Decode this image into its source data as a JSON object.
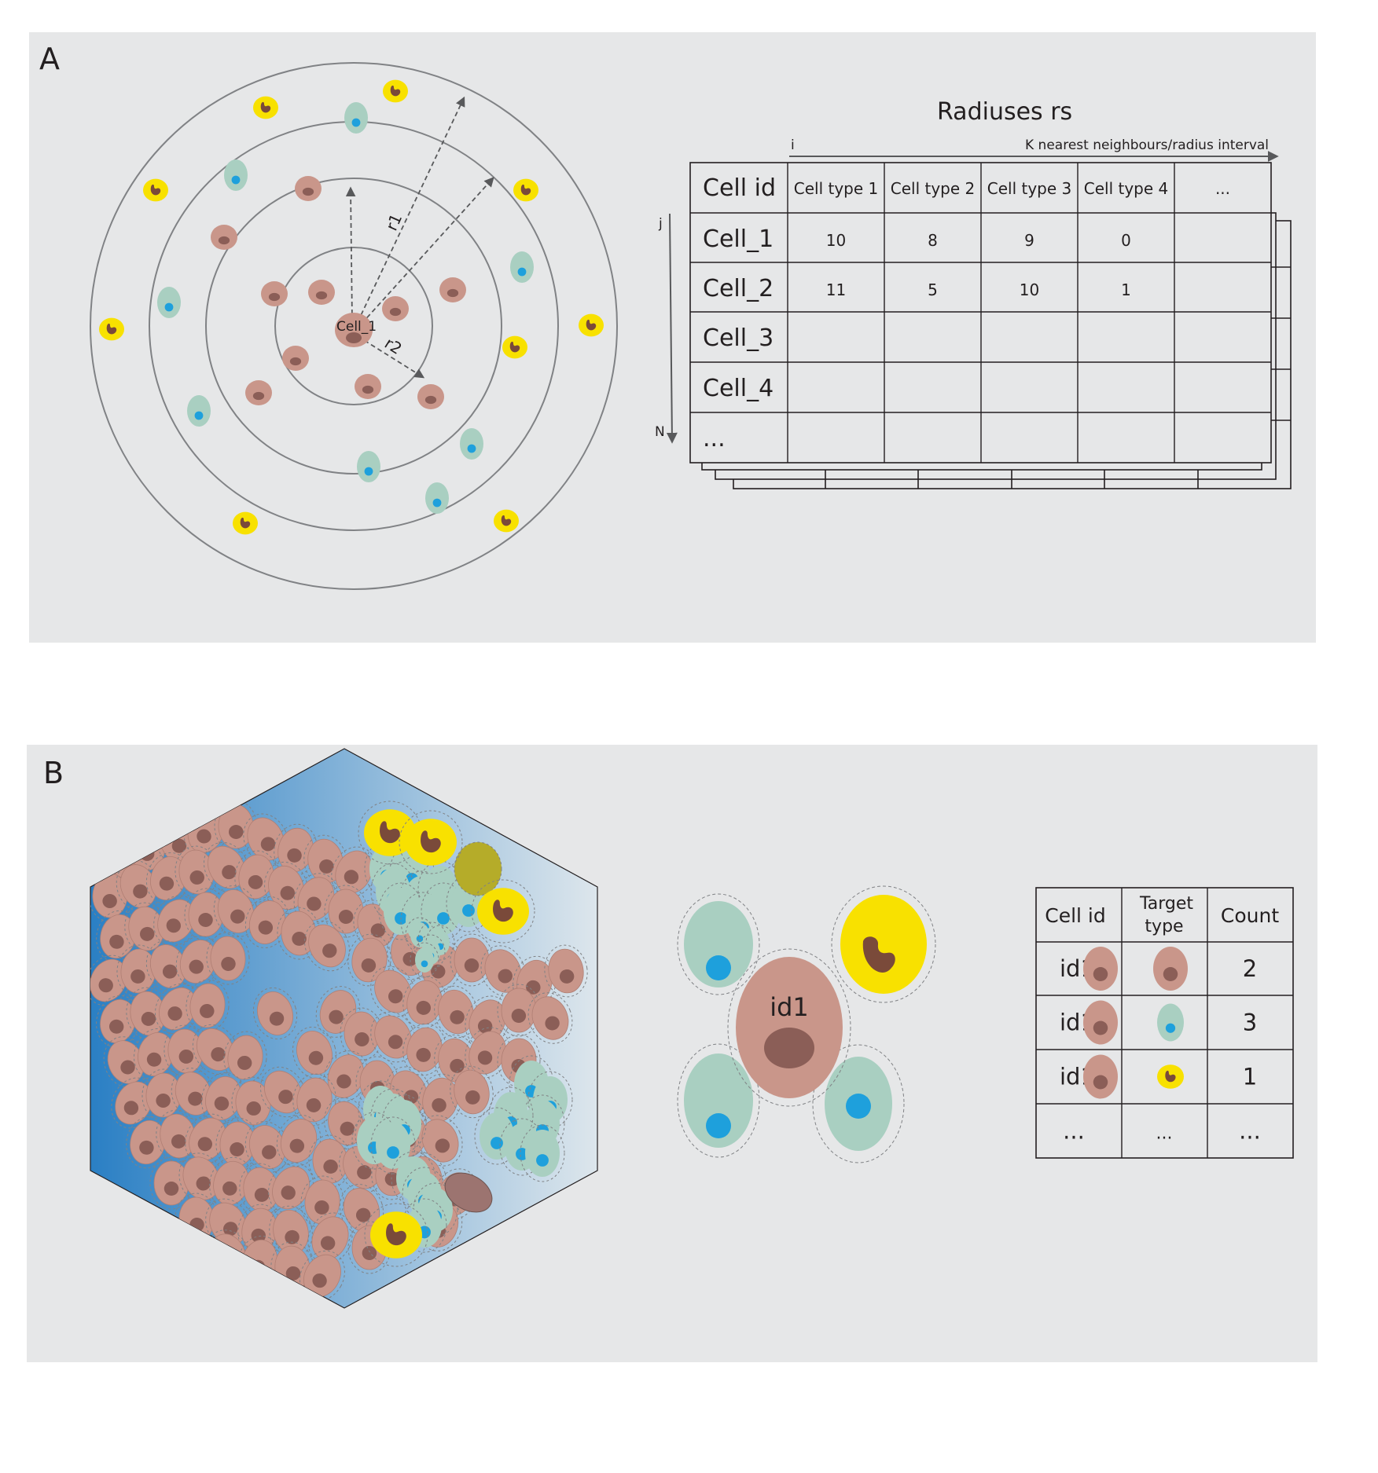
{
  "panel_a": {
    "label": "A",
    "center_cell_label": "Cell_1",
    "radius_labels": [
      "r1",
      "r2"
    ],
    "table_title": "Radiuses rs",
    "axis_i_label": "i",
    "axis_k_label": "K nearest neighbours/radius interval",
    "axis_j_label": "j",
    "axis_n_label": "N",
    "header": [
      "Cell id",
      "Cell type 1",
      "Cell type 2",
      "Cell type 3",
      "Cell type 4",
      "..."
    ],
    "rows": [
      [
        "Cell_1",
        "10",
        "8",
        "9",
        "0",
        ""
      ],
      [
        "Cell_2",
        "11",
        "5",
        "10",
        "1",
        ""
      ],
      [
        "Cell_3",
        "",
        "",
        "",
        "",
        ""
      ],
      [
        "Cell_4",
        "",
        "",
        "",
        "",
        ""
      ],
      [
        "...",
        "",
        "",
        "",
        "",
        ""
      ]
    ]
  },
  "panel_b": {
    "label": "B",
    "center_cell_label": "id1",
    "table_header": {
      "cell_id": "Cell id",
      "target_type_line1": "Target",
      "target_type_line2": "type",
      "count": "Count"
    },
    "rows": [
      {
        "cell_id": "id1",
        "cell_icon": "pink-cell-icon",
        "target_icon": "pink-cell-icon",
        "count": "2"
      },
      {
        "cell_id": "id1",
        "cell_icon": "pink-cell-icon",
        "target_icon": "teal-cell-icon",
        "count": "3"
      },
      {
        "cell_id": "id1",
        "cell_icon": "pink-cell-icon",
        "target_icon": "yellow-cell-icon",
        "count": "1"
      },
      {
        "cell_id": "...",
        "cell_icon": "",
        "target_icon": "...",
        "count": "..."
      }
    ]
  },
  "colors": {
    "panel_bg": "#e6e7e8",
    "pink_cell": "#c9968a",
    "pink_nucleus": "#8b5e57",
    "teal_cell": "#a9cfc1",
    "teal_nucleus": "#1ea0dc",
    "yellow_cell": "#f8e100",
    "yellow_nucleus": "#7a4a3a",
    "ring": "#808285",
    "tissue_blue": "#2a7fc4"
  }
}
